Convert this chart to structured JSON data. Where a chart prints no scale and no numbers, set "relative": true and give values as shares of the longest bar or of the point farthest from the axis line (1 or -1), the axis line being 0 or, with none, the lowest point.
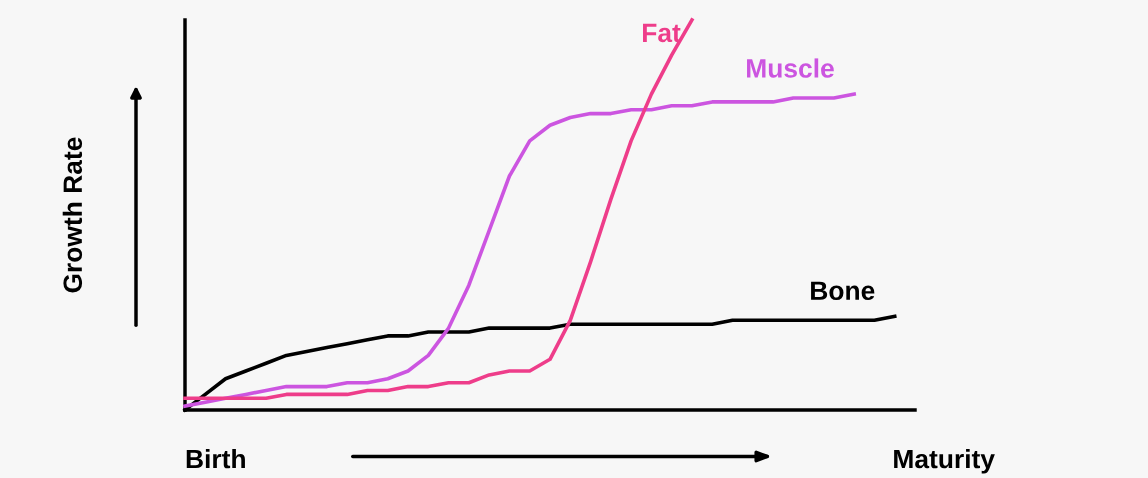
{
  "chart_data": {
    "type": "line",
    "relative": true,
    "ylabel": "Growth Rate",
    "legend": false,
    "grid": false,
    "marker": "none",
    "line_style": "solid",
    "annotations": [
      "Birth",
      "Maturity"
    ],
    "categories": [
      null,
      null,
      null,
      null,
      null,
      null,
      null,
      null,
      null,
      null,
      null,
      null,
      null,
      null,
      null,
      null,
      null,
      null,
      null,
      null,
      null,
      null,
      null,
      null,
      null,
      null,
      null,
      null,
      null,
      null,
      null,
      null,
      null,
      null,
      null,
      null,
      null
    ],
    "series": [
      {
        "name": "Bone",
        "color": "#000000",
        "values": [
          0,
          0.04,
          0.08,
          0.1,
          0.12,
          0.14,
          0.15,
          0.16,
          0.17,
          0.18,
          0.19,
          0.19,
          0.2,
          0.2,
          0.2,
          0.21,
          0.21,
          0.21,
          0.21,
          0.22,
          0.22,
          0.22,
          0.22,
          0.22,
          0.22,
          0.22,
          0.22,
          0.23,
          0.23,
          0.23,
          0.23,
          0.23,
          0.23,
          0.23,
          0.23,
          0.24,
          null
        ]
      },
      {
        "name": "Muscle",
        "color": "#cc55e0",
        "values": [
          0.01,
          0.02,
          0.03,
          0.04,
          0.05,
          0.06,
          0.06,
          0.06,
          0.07,
          0.07,
          0.08,
          0.1,
          0.14,
          0.21,
          0.32,
          0.46,
          0.6,
          0.69,
          0.73,
          0.75,
          0.76,
          0.76,
          0.77,
          0.77,
          0.78,
          0.78,
          0.79,
          0.79,
          0.79,
          0.79,
          0.8,
          0.8,
          0.8,
          0.81,
          null,
          null,
          null
        ]
      },
      {
        "name": "Fat",
        "color": "#ee3d8a",
        "values": [
          0.03,
          0.03,
          0.03,
          0.03,
          0.03,
          0.04,
          0.04,
          0.04,
          0.04,
          0.05,
          0.05,
          0.06,
          0.06,
          0.07,
          0.07,
          0.09,
          0.1,
          0.1,
          0.13,
          0.23,
          0.38,
          0.54,
          0.69,
          0.81,
          0.91,
          1.0,
          null,
          null,
          null,
          null,
          null,
          null,
          null,
          null,
          null,
          null,
          null
        ]
      }
    ]
  }
}
